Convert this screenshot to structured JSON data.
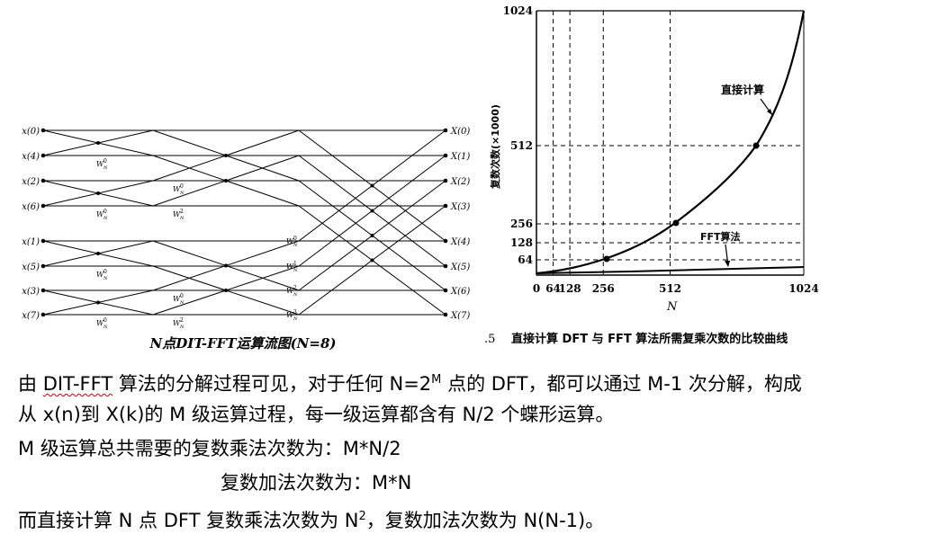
{
  "butterfly": {
    "inputs": [
      "x(0)",
      "x(4)",
      "x(2)",
      "x(6)",
      "x(1)",
      "x(5)",
      "x(3)",
      "x(7)"
    ],
    "outputs": [
      "X(0)",
      "X(1)",
      "X(2)",
      "X(3)",
      "X(4)",
      "X(5)",
      "X(6)",
      "X(7)"
    ],
    "caption": "N点DIT-FFT运算流图(N=8)",
    "twiddle": {
      "stage1": [
        "W",
        "W",
        "W",
        "W"
      ],
      "stage1_sup": [
        "0",
        "0",
        "0",
        "0"
      ],
      "stage2": [
        "W",
        "W",
        "W",
        "W"
      ],
      "stage2_sup": [
        "0",
        "2",
        "0",
        "2"
      ],
      "stage3": [
        "W",
        "W",
        "W",
        "W"
      ],
      "stage3_sup": [
        "0",
        "1",
        "2",
        "3"
      ],
      "sub": "N"
    }
  },
  "chart_data": {
    "type": "line",
    "ylabel": "复数次数(×1000)",
    "xlabel": "N",
    "x_ticks": [
      "0",
      "64",
      "128",
      "256",
      "512",
      "1024"
    ],
    "y_ticks": [
      "64",
      "128",
      "256",
      "512",
      "1024"
    ],
    "xlim": [
      0,
      1024
    ],
    "ylim": [
      0,
      1024
    ],
    "series": [
      {
        "name": "直接计算",
        "points": [
          [
            0,
            0
          ],
          [
            64,
            4
          ],
          [
            128,
            16
          ],
          [
            256,
            66
          ],
          [
            512,
            262
          ],
          [
            768,
            590
          ],
          [
            1024,
            1048
          ]
        ]
      },
      {
        "name": "FFT算法",
        "points": [
          [
            0,
            0
          ],
          [
            256,
            1
          ],
          [
            512,
            2.3
          ],
          [
            1024,
            5
          ]
        ]
      }
    ],
    "markers": [
      [
        256,
        65.5
      ],
      [
        512,
        262
      ],
      [
        768,
        590
      ]
    ],
    "caption_prefix": ".5",
    "caption": "直接计算 DFT 与 FFT 算法所需复乘次数的比较曲线"
  },
  "text": {
    "p1_a": "由 ",
    "p1_b": "DIT-FFT",
    "p1_c": " 算法的分解过程可见，对于任何 N=2",
    "p1_sup": "M",
    "p1_d": " 点的 DFT，都可以通过 M-1 次分解，构成",
    "p2": "从 x(n)到 X(k)的 M 级运算过程，每一级运算都含有 N/2 个蝶形运算。",
    "p3": "M 级运算总共需要的复数乘法次数为：M*N/2",
    "p4": "复数加法次数为：M*N",
    "p5_a": "而直接计算 N 点 DFT 复数乘法次数为 N",
    "p5_sup": "2",
    "p5_b": "，复数加法次数为 N(N-1)。"
  }
}
